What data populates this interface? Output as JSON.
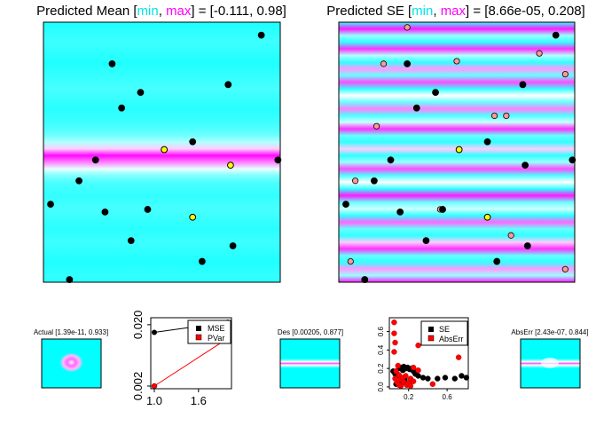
{
  "colors": {
    "cyan": "#00ffff",
    "magenta": "#ff00ff",
    "black": "#000000",
    "red": "#ff0000",
    "yellow": "#ffff00",
    "pink": "#ff9999"
  },
  "chart_data": [
    {
      "type": "heatmap",
      "title_prefix": "Predicted Mean [",
      "title_min": "min",
      "title_sep": ", ",
      "title_max": "max",
      "title_suffix": "] = [-0.111, 0.98]",
      "xlim": [
        0,
        1
      ],
      "ylim": [
        0,
        1
      ],
      "rows": [
        0.05,
        0.08,
        0.1,
        0.12,
        0.1,
        0.08,
        0.06,
        0.08,
        0.1,
        0.12,
        0.14,
        0.12,
        0.1,
        0.08,
        0.1,
        0.12,
        0.16,
        0.22,
        0.35,
        0.6,
        0.98,
        0.75,
        0.45,
        0.25,
        0.15,
        0.12,
        0.1,
        0.12,
        0.14,
        0.12,
        0.1,
        0.08,
        0.1,
        0.12,
        0.1,
        0.08,
        0.06,
        0.08,
        0.1,
        0.08
      ],
      "points": [
        [
          0.92,
          0.95
        ],
        [
          0.29,
          0.84
        ],
        [
          0.41,
          0.73
        ],
        [
          0.78,
          0.76
        ],
        [
          0.33,
          0.67
        ],
        [
          0.63,
          0.54
        ],
        [
          0.51,
          0.51
        ],
        [
          0.22,
          0.47
        ],
        [
          0.79,
          0.45
        ],
        [
          0.99,
          0.47
        ],
        [
          0.15,
          0.39
        ],
        [
          0.03,
          0.3
        ],
        [
          0.26,
          0.27
        ],
        [
          0.44,
          0.28
        ],
        [
          0.63,
          0.25
        ],
        [
          0.37,
          0.16
        ],
        [
          0.8,
          0.14
        ],
        [
          0.67,
          0.08
        ],
        [
          0.11,
          0.01
        ]
      ],
      "highlight_points": [
        [
          0.51,
          0.51
        ],
        [
          0.79,
          0.45
        ],
        [
          0.63,
          0.25
        ]
      ]
    },
    {
      "type": "heatmap",
      "title_prefix": "Predicted SE [",
      "title_min": "min",
      "title_sep": ", ",
      "title_max": "max",
      "title_suffix": "] = [8.66e-05, 0.208]",
      "xlim": [
        0,
        1
      ],
      "ylim": [
        0,
        1
      ],
      "rows": [
        0.1,
        0.95,
        0.3,
        0.1,
        0.9,
        0.35,
        0.1,
        0.7,
        0.2,
        0.85,
        0.1,
        0.5,
        0.2,
        0.75,
        0.15,
        0.4,
        0.9,
        0.2,
        0.1,
        0.6,
        0.1,
        0.3,
        0.85,
        0.15,
        0.5,
        0.1,
        0.95,
        0.2,
        0.4,
        0.1,
        0.8,
        0.2,
        0.1,
        0.6,
        0.9,
        0.2,
        0.1,
        0.7,
        0.3,
        0.95
      ],
      "points": [
        [
          0.92,
          0.95
        ],
        [
          0.29,
          0.84
        ],
        [
          0.41,
          0.73
        ],
        [
          0.78,
          0.76
        ],
        [
          0.33,
          0.67
        ],
        [
          0.63,
          0.54
        ],
        [
          0.51,
          0.51
        ],
        [
          0.22,
          0.47
        ],
        [
          0.79,
          0.45
        ],
        [
          0.99,
          0.47
        ],
        [
          0.15,
          0.39
        ],
        [
          0.03,
          0.3
        ],
        [
          0.26,
          0.27
        ],
        [
          0.44,
          0.28
        ],
        [
          0.63,
          0.25
        ],
        [
          0.37,
          0.16
        ],
        [
          0.8,
          0.14
        ],
        [
          0.67,
          0.08
        ],
        [
          0.11,
          0.01
        ]
      ],
      "highlight_points": [
        [
          0.51,
          0.51
        ],
        [
          0.63,
          0.25
        ]
      ],
      "open_points": [
        [
          0.29,
          0.98
        ],
        [
          0.5,
          0.85
        ],
        [
          0.85,
          0.88
        ],
        [
          0.96,
          0.8
        ],
        [
          0.19,
          0.84
        ],
        [
          0.66,
          0.64
        ],
        [
          0.71,
          0.64
        ],
        [
          0.16,
          0.6
        ],
        [
          0.07,
          0.39
        ],
        [
          0.43,
          0.28
        ],
        [
          0.73,
          0.18
        ],
        [
          0.05,
          0.08
        ],
        [
          0.96,
          0.05
        ]
      ]
    },
    {
      "type": "heatmap",
      "title": "Actual [1.39e-11, 0.933]",
      "blob": {
        "cx": 0.5,
        "cy": 0.48,
        "r": 0.2
      }
    },
    {
      "type": "line",
      "x": [
        1,
        2
      ],
      "ylog": true,
      "series": [
        {
          "name": "MSE",
          "values": [
            0.015,
            0.022
          ]
        },
        {
          "name": "PVar",
          "values": [
            0.002,
            0.012
          ]
        }
      ],
      "xticks": [
        "1.0",
        "1.6"
      ],
      "xtick_values": [
        1.0,
        1.6
      ],
      "yticks": [
        "0.002",
        "0.020"
      ],
      "ytick_values": [
        0.002,
        0.02
      ],
      "xlim": [
        1,
        2
      ],
      "ylim": [
        0.002,
        0.022
      ]
    },
    {
      "type": "heatmap",
      "title": "Des [0.00205, 0.877]",
      "band": {
        "y": 0.5
      }
    },
    {
      "type": "scatter",
      "series": [
        {
          "name": "SE",
          "points": [
            [
              0.04,
              0.17
            ],
            [
              0.06,
              0.14
            ],
            [
              0.08,
              0.12
            ],
            [
              0.1,
              0.2
            ],
            [
              0.12,
              0.21
            ],
            [
              0.14,
              0.18
            ],
            [
              0.15,
              0.22
            ],
            [
              0.17,
              0.2
            ],
            [
              0.19,
              0.21
            ],
            [
              0.21,
              0.19
            ],
            [
              0.23,
              0.2
            ],
            [
              0.25,
              0.17
            ],
            [
              0.27,
              0.14
            ],
            [
              0.3,
              0.12
            ],
            [
              0.35,
              0.1
            ],
            [
              0.4,
              0.09
            ],
            [
              0.5,
              0.09
            ],
            [
              0.58,
              0.1
            ],
            [
              0.68,
              0.09
            ],
            [
              0.75,
              0.12
            ],
            [
              0.8,
              0.1
            ],
            [
              0.07,
              0.03
            ],
            [
              0.1,
              0.05
            ],
            [
              0.13,
              0.06
            ],
            [
              0.2,
              0.04
            ],
            [
              0.16,
              0.08
            ]
          ]
        },
        {
          "name": "AbsErr",
          "points": [
            [
              0.05,
              0.7
            ],
            [
              0.05,
              0.58
            ],
            [
              0.06,
              0.48
            ],
            [
              0.05,
              0.38
            ],
            [
              0.09,
              0.23
            ],
            [
              0.07,
              0.17
            ],
            [
              0.1,
              0.13
            ],
            [
              0.12,
              0.08
            ],
            [
              0.15,
              0.05
            ],
            [
              0.18,
              0.02
            ],
            [
              0.2,
              0.04
            ],
            [
              0.22,
              0.09
            ],
            [
              0.12,
              0.01
            ],
            [
              0.08,
              0.05
            ],
            [
              0.25,
              0.06
            ],
            [
              0.14,
              0.1
            ],
            [
              0.17,
              0.12
            ],
            [
              0.1,
              0.02
            ],
            [
              0.06,
              0.09
            ],
            [
              0.22,
              0.01
            ],
            [
              0.3,
              0.18
            ],
            [
              0.3,
              0.45
            ],
            [
              0.55,
              0.5
            ],
            [
              0.72,
              0.58
            ],
            [
              0.72,
              0.32
            ],
            [
              0.45,
              0.03
            ],
            [
              0.25,
              0.21
            ]
          ]
        }
      ],
      "xticks": [
        "0.2",
        "0.6"
      ],
      "xtick_values": [
        0.2,
        0.6
      ],
      "yticks": [
        "0.0",
        "0.2",
        "0.4",
        "0.6"
      ],
      "ytick_values": [
        0,
        0.2,
        0.4,
        0.6
      ],
      "xlim": [
        0,
        0.82
      ],
      "ylim": [
        -0.02,
        0.75
      ]
    },
    {
      "type": "heatmap",
      "title": "AbsErr [2.43e-07, 0.844]",
      "band": {
        "y": 0.47
      }
    }
  ]
}
